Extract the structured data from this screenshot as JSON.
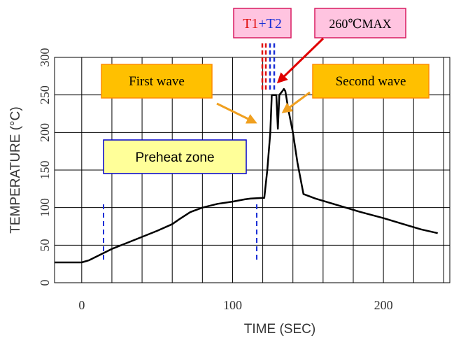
{
  "chart_data": {
    "type": "line",
    "title": "",
    "xlabel": "TIME (SEC)",
    "ylabel": "TEMPERATURE (°C)",
    "xlim": [
      -18,
      244
    ],
    "ylim": [
      0,
      300
    ],
    "x_ticks": [
      0,
      100,
      200
    ],
    "x_tick_labels": [
      "0",
      "100",
      "200"
    ],
    "y_ticks": [
      0,
      50,
      100,
      150,
      200,
      250,
      300
    ],
    "y_tick_labels": [
      "0",
      "50",
      "100",
      "150",
      "200",
      "250",
      "300"
    ],
    "grid": true,
    "series": [
      {
        "color": "#000000",
        "points": [
          [
            -18,
            27
          ],
          [
            0,
            27
          ],
          [
            5,
            30
          ],
          [
            12,
            37
          ],
          [
            20,
            45
          ],
          [
            30,
            53
          ],
          [
            40,
            61
          ],
          [
            50,
            69
          ],
          [
            60,
            78
          ],
          [
            65,
            85
          ],
          [
            72,
            94
          ],
          [
            80,
            100
          ],
          [
            90,
            105
          ],
          [
            100,
            108
          ],
          [
            108,
            111
          ],
          [
            112,
            112
          ],
          [
            120,
            113
          ],
          [
            121,
            113
          ],
          [
            123,
            150
          ],
          [
            125,
            200
          ],
          [
            126,
            250
          ],
          [
            128,
            250
          ],
          [
            129,
            250
          ],
          [
            130,
            205
          ],
          [
            131,
            250
          ],
          [
            133,
            255
          ],
          [
            134,
            258
          ],
          [
            135,
            255
          ],
          [
            137,
            230
          ],
          [
            140,
            200
          ],
          [
            143,
            160
          ],
          [
            147,
            118
          ],
          [
            155,
            112
          ],
          [
            170,
            103
          ],
          [
            185,
            94
          ],
          [
            200,
            86
          ],
          [
            215,
            77
          ],
          [
            225,
            71
          ],
          [
            236,
            66
          ]
        ]
      }
    ],
    "annotations": {
      "t_label_a": "T1",
      "t_label_plus": "+",
      "t_label_b": "T2",
      "max_label": "260℃MAX",
      "first_wave": "First wave",
      "second_wave": "Second wave",
      "preheat": "Preheat zone"
    },
    "colors": {
      "t1": "#e01010",
      "t2": "#1a2fd6",
      "arrow_red": "#e00000",
      "arrow_orange": "#f0a020",
      "pink_box": "#ffc4e0",
      "pink_border": "#d81b60",
      "orange_box": "#ffc000",
      "orange_border": "#ff8c00",
      "preheat_fill": "#ffff99",
      "preheat_border": "#0000cc",
      "dashed_blue": "#1a2fd6"
    }
  }
}
